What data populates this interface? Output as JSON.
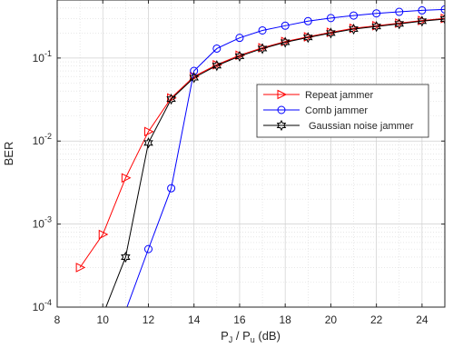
{
  "chart_data": {
    "type": "line",
    "title": "",
    "xlabel_main": "P",
    "xlabel_sub1": "J",
    "xlabel_sep": " / P",
    "xlabel_sub2": "u",
    "xlabel_unit": " (dB)",
    "ylabel": "BER",
    "xlim": [
      8,
      25
    ],
    "ylim": [
      0.0001,
      0.5
    ],
    "yscale": "log",
    "grid": true,
    "minor_grid": true,
    "legend_position": "center-right",
    "x_ticks": [
      8,
      10,
      12,
      14,
      16,
      18,
      20,
      22,
      24
    ],
    "x_tick_labels": [
      "8",
      "10",
      "12",
      "14",
      "16",
      "18",
      "20",
      "22",
      "24"
    ],
    "y_ticks": [
      {
        "value": 0.0001,
        "base": "10",
        "exp": "-4"
      },
      {
        "value": 0.001,
        "base": "10",
        "exp": "-3"
      },
      {
        "value": 0.01,
        "base": "10",
        "exp": "-2"
      },
      {
        "value": 0.1,
        "base": "10",
        "exp": "-1"
      }
    ],
    "series": [
      {
        "name": "Repeat jammer",
        "color": "#ff0000",
        "marker": "triangle-right",
        "x": [
          9,
          10,
          11,
          12,
          13,
          14,
          15,
          16,
          17,
          18,
          19,
          20,
          21,
          22,
          23,
          24,
          25
        ],
        "y": [
          0.0003,
          0.00075,
          0.0036,
          0.013,
          0.033,
          0.06,
          0.083,
          0.108,
          0.133,
          0.158,
          0.18,
          0.204,
          0.228,
          0.245,
          0.263,
          0.283,
          0.3
        ]
      },
      {
        "name": "Comb jammer",
        "color": "#0000ff",
        "marker": "circle",
        "x": [
          11,
          12,
          13,
          14,
          15,
          16,
          17,
          18,
          19,
          20,
          21,
          22,
          23,
          24,
          25
        ],
        "y": [
          9e-05,
          0.0005,
          0.0027,
          0.07,
          0.13,
          0.175,
          0.215,
          0.245,
          0.278,
          0.303,
          0.325,
          0.345,
          0.36,
          0.375,
          0.385
        ]
      },
      {
        "name": "Gaussian noise jammer",
        "color": "#000000",
        "marker": "hexagram",
        "x": [
          10,
          11,
          12,
          13,
          14,
          15,
          16,
          17,
          18,
          19,
          20,
          21,
          22,
          23,
          24,
          25
        ],
        "y": [
          8e-05,
          0.0004,
          0.0095,
          0.032,
          0.058,
          0.081,
          0.105,
          0.13,
          0.155,
          0.177,
          0.2,
          0.223,
          0.24,
          0.258,
          0.278,
          0.295
        ]
      }
    ]
  }
}
